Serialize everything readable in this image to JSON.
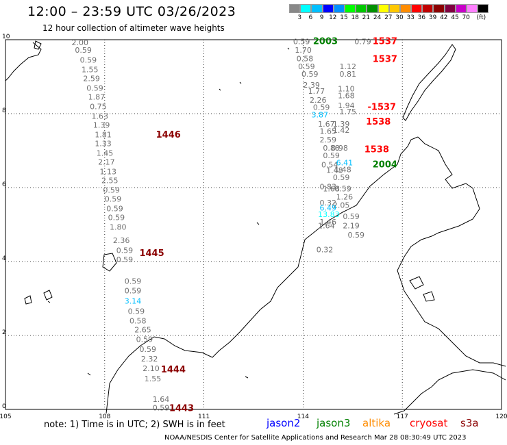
{
  "header": {
    "title": "12:00 – 23:59 UTC 03/26/2023",
    "subtitle": "12 hour collection of altimeter wave heights"
  },
  "legend": {
    "colors": [
      "#888888",
      "#00ffff",
      "#00bfff",
      "#0000ff",
      "#0090ff",
      "#00ff00",
      "#00c800",
      "#009000",
      "#ffff00",
      "#ffc800",
      "#ff8c00",
      "#ff0000",
      "#c00000",
      "#8c0000",
      "#800040",
      "#c800c8",
      "#ff80ff",
      "#000000"
    ],
    "labels": [
      "3",
      "6",
      "9",
      "12",
      "15",
      "18",
      "21",
      "24",
      "27",
      "30",
      "33",
      "36",
      "39",
      "42",
      "45",
      "70",
      "(ft)"
    ]
  },
  "axes": {
    "x_ticks": [
      "105",
      "108",
      "111",
      "114",
      "117",
      "120"
    ],
    "y_ticks": [
      "0",
      "2",
      "4",
      "6",
      "8",
      "10"
    ]
  },
  "chart_data": {
    "type": "scatter",
    "xlim": [
      105,
      120
    ],
    "ylim": [
      0,
      10
    ],
    "x_unit": "longitude (deg E)",
    "y_unit": "latitude (deg N)",
    "value_unit": "ft",
    "grid": true,
    "wave_heights": [
      {
        "lon": 107.0,
        "lat": 9.85,
        "v": "2.00"
      },
      {
        "lon": 107.1,
        "lat": 9.65,
        "v": "0.59"
      },
      {
        "lon": 107.25,
        "lat": 9.38,
        "v": "0.59"
      },
      {
        "lon": 107.3,
        "lat": 9.12,
        "v": "1.55"
      },
      {
        "lon": 107.35,
        "lat": 8.88,
        "v": "2.59"
      },
      {
        "lon": 107.45,
        "lat": 8.62,
        "v": "0.59"
      },
      {
        "lon": 107.5,
        "lat": 8.38,
        "v": "1.87"
      },
      {
        "lon": 107.55,
        "lat": 8.12,
        "v": "0.75"
      },
      {
        "lon": 107.6,
        "lat": 7.86,
        "v": "1.63"
      },
      {
        "lon": 107.65,
        "lat": 7.62,
        "v": "1.39"
      },
      {
        "lon": 107.7,
        "lat": 7.36,
        "v": "1.81"
      },
      {
        "lon": 107.7,
        "lat": 7.12,
        "v": "1.33"
      },
      {
        "lon": 107.75,
        "lat": 6.86,
        "v": "1.45"
      },
      {
        "lon": 107.8,
        "lat": 6.62,
        "v": "2.17"
      },
      {
        "lon": 107.85,
        "lat": 6.36,
        "v": "1.13"
      },
      {
        "lon": 107.9,
        "lat": 6.12,
        "v": "2.55"
      },
      {
        "lon": 107.95,
        "lat": 5.86,
        "v": "0.59"
      },
      {
        "lon": 108.0,
        "lat": 5.62,
        "v": "0.59"
      },
      {
        "lon": 108.05,
        "lat": 5.36,
        "v": "0.59"
      },
      {
        "lon": 108.1,
        "lat": 5.12,
        "v": "0.59"
      },
      {
        "lon": 108.15,
        "lat": 4.86,
        "v": "1.80"
      },
      {
        "lon": 108.25,
        "lat": 4.5,
        "v": "2.36"
      },
      {
        "lon": 108.35,
        "lat": 4.23,
        "v": "0.59"
      },
      {
        "lon": 108.35,
        "lat": 3.98,
        "v": "0.59"
      },
      {
        "lon": 108.6,
        "lat": 3.4,
        "v": "0.59"
      },
      {
        "lon": 108.6,
        "lat": 3.14,
        "v": "0.59"
      },
      {
        "lon": 108.6,
        "lat": 2.86,
        "v": "3.14",
        "c": "#00bfff"
      },
      {
        "lon": 108.7,
        "lat": 2.58,
        "v": "0.59"
      },
      {
        "lon": 108.75,
        "lat": 2.32,
        "v": "0.58"
      },
      {
        "lon": 108.9,
        "lat": 2.08,
        "v": "2.65"
      },
      {
        "lon": 108.95,
        "lat": 1.82,
        "v": "0.59"
      },
      {
        "lon": 109.05,
        "lat": 1.56,
        "v": "0.59"
      },
      {
        "lon": 109.1,
        "lat": 1.3,
        "v": "2.32"
      },
      {
        "lon": 109.15,
        "lat": 1.04,
        "v": "2.10"
      },
      {
        "lon": 109.2,
        "lat": 0.76,
        "v": "1.55"
      },
      {
        "lon": 109.45,
        "lat": 0.2,
        "v": "1.64"
      },
      {
        "lon": 109.45,
        "lat": -0.03,
        "v": "0.59"
      },
      {
        "lon": 113.7,
        "lat": 9.88,
        "v": "0.59"
      },
      {
        "lon": 113.75,
        "lat": 9.65,
        "v": "1.70"
      },
      {
        "lon": 113.8,
        "lat": 9.42,
        "v": "0.58"
      },
      {
        "lon": 113.85,
        "lat": 9.2,
        "v": "0.59"
      },
      {
        "lon": 113.95,
        "lat": 9.0,
        "v": "0.59"
      },
      {
        "lon": 114.0,
        "lat": 8.7,
        "v": "2.39"
      },
      {
        "lon": 114.15,
        "lat": 8.54,
        "v": "1.77"
      },
      {
        "lon": 114.2,
        "lat": 8.3,
        "v": "2.26"
      },
      {
        "lon": 114.3,
        "lat": 8.1,
        "v": "0.59"
      },
      {
        "lon": 114.25,
        "lat": 7.9,
        "v": "3.87",
        "c": "#00bfff"
      },
      {
        "lon": 114.45,
        "lat": 7.65,
        "v": "1.67"
      },
      {
        "lon": 114.5,
        "lat": 7.45,
        "v": "1.65"
      },
      {
        "lon": 114.5,
        "lat": 7.22,
        "v": "2.59"
      },
      {
        "lon": 114.6,
        "lat": 7.0,
        "v": "0.88"
      },
      {
        "lon": 114.6,
        "lat": 6.8,
        "v": "0.59"
      },
      {
        "lon": 114.55,
        "lat": 6.55,
        "v": "0.54"
      },
      {
        "lon": 114.7,
        "lat": 6.4,
        "v": "1.48"
      },
      {
        "lon": 114.9,
        "lat": 6.2,
        "v": "0.59"
      },
      {
        "lon": 114.5,
        "lat": 5.95,
        "v": "0.83"
      },
      {
        "lon": 114.6,
        "lat": 5.9,
        "v": "1.68"
      },
      {
        "lon": 114.95,
        "lat": 5.9,
        "v": "0.59"
      },
      {
        "lon": 115.0,
        "lat": 5.68,
        "v": "1.26"
      },
      {
        "lon": 114.5,
        "lat": 5.52,
        "v": "0.32"
      },
      {
        "lon": 114.9,
        "lat": 5.45,
        "v": "2.05"
      },
      {
        "lon": 114.5,
        "lat": 5.38,
        "v": "6.49",
        "c": "#00bfff"
      },
      {
        "lon": 114.45,
        "lat": 5.2,
        "v": "13.83",
        "c": "#00ffff"
      },
      {
        "lon": 114.5,
        "lat": 5.0,
        "v": "1.46"
      },
      {
        "lon": 115.2,
        "lat": 5.15,
        "v": "0.59"
      },
      {
        "lon": 114.45,
        "lat": 4.9,
        "v": "1.64"
      },
      {
        "lon": 115.2,
        "lat": 4.9,
        "v": "2.19"
      },
      {
        "lon": 115.35,
        "lat": 4.65,
        "v": "0.59"
      },
      {
        "lon": 114.4,
        "lat": 4.25,
        "v": "0.32"
      },
      {
        "lon": 115.1,
        "lat": 9.2,
        "v": "1.12"
      },
      {
        "lon": 115.1,
        "lat": 9.0,
        "v": "0.81"
      },
      {
        "lon": 115.05,
        "lat": 8.6,
        "v": "1.10"
      },
      {
        "lon": 115.05,
        "lat": 8.42,
        "v": "1.68"
      },
      {
        "lon": 115.05,
        "lat": 8.15,
        "v": "1.94"
      },
      {
        "lon": 115.1,
        "lat": 7.98,
        "v": "1.75"
      },
      {
        "lon": 114.9,
        "lat": 7.65,
        "v": "1.39"
      },
      {
        "lon": 114.9,
        "lat": 7.48,
        "v": "1.42"
      },
      {
        "lon": 114.85,
        "lat": 7.0,
        "v": "0.98"
      },
      {
        "lon": 115.0,
        "lat": 6.6,
        "v": "6.41",
        "c": "#00bfff"
      },
      {
        "lon": 114.95,
        "lat": 6.42,
        "v": "1.48"
      },
      {
        "lon": 115.55,
        "lat": 9.88,
        "v": "0.79"
      }
    ],
    "pass_times": [
      {
        "lon": 109.55,
        "lat": 7.35,
        "t": "1446",
        "c": "#8b0000"
      },
      {
        "lon": 109.05,
        "lat": 4.15,
        "t": "1445",
        "c": "#8b0000"
      },
      {
        "lon": 109.7,
        "lat": 1.0,
        "t": "1444",
        "c": "#8b0000"
      },
      {
        "lon": 109.95,
        "lat": -0.05,
        "t": "1443",
        "c": "#8b0000"
      },
      {
        "lon": 114.3,
        "lat": 9.88,
        "t": "2003",
        "c": "#008000"
      },
      {
        "lon": 116.1,
        "lat": 9.88,
        "t": "1537",
        "c": "#ff0000"
      },
      {
        "lon": 116.1,
        "lat": 9.4,
        "t": "1537",
        "c": "#ff0000"
      },
      {
        "lon": 115.95,
        "lat": 8.1,
        "t": "-1537",
        "c": "#ff0000"
      },
      {
        "lon": 115.9,
        "lat": 7.7,
        "t": "1538",
        "c": "#ff0000"
      },
      {
        "lon": 115.85,
        "lat": 6.95,
        "t": "1538",
        "c": "#ff0000"
      },
      {
        "lon": 116.1,
        "lat": 6.55,
        "t": "2004",
        "c": "#008000"
      }
    ]
  },
  "footer": {
    "note": "note: 1) Time is in UTC; 2) SWH is in feet",
    "satellites": [
      {
        "name": "jason2",
        "color": "#0000ff"
      },
      {
        "name": "jason3",
        "color": "#008000"
      },
      {
        "name": "altika",
        "color": "#ff8c00"
      },
      {
        "name": "cryosat",
        "color": "#ff0000"
      },
      {
        "name": "s3a",
        "color": "#8b0000"
      }
    ],
    "credit": "NOAA/NESDIS Center for Satellite Applications and Research    Mar 28 08:30:49 UTC 2023"
  }
}
